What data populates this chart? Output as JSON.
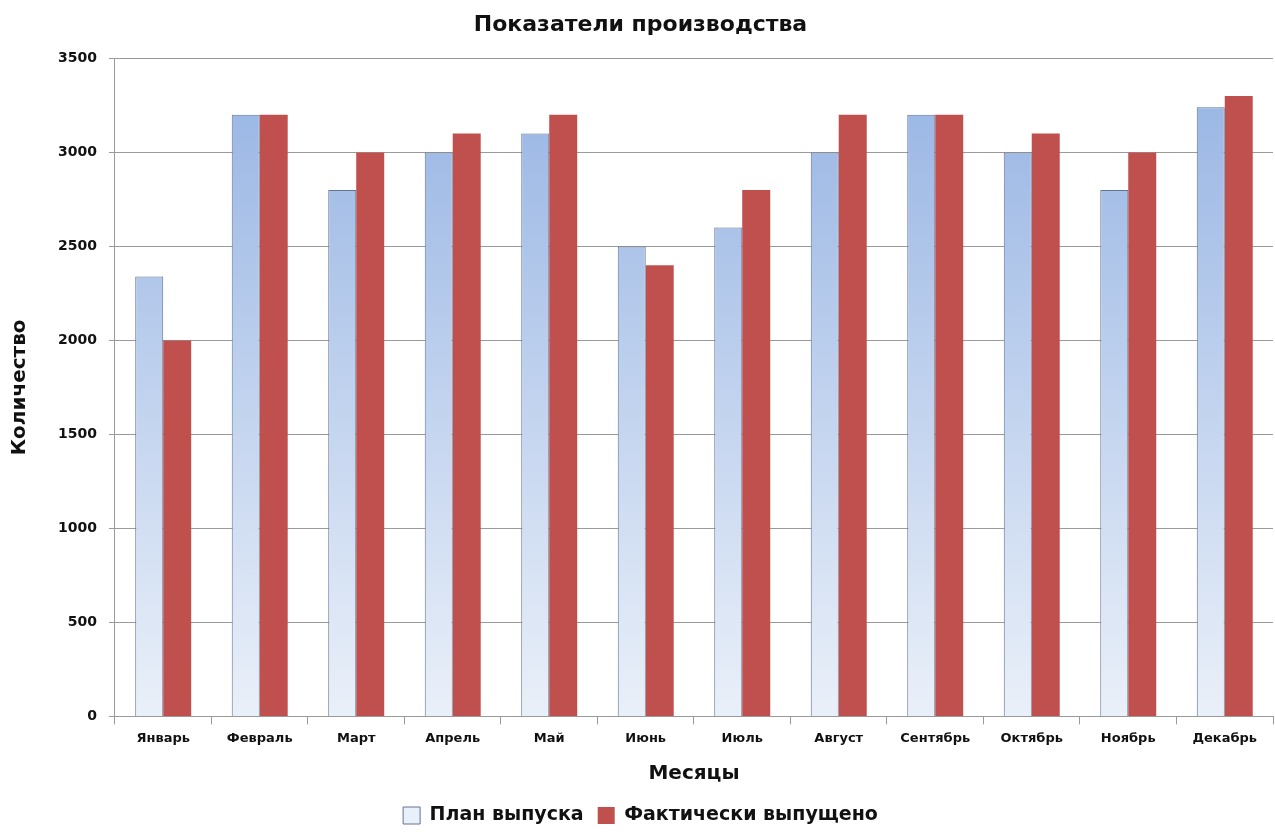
{
  "chart_data": {
    "type": "bar",
    "title": "Показатели производства",
    "xlabel": "Месяцы",
    "ylabel": "Количество",
    "categories": [
      "Январь",
      "Февраль",
      "Март",
      "Апрель",
      "Май",
      "Июнь",
      "Июль",
      "Август",
      "Сентябрь",
      "Октябрь",
      "Ноябрь",
      "Декабрь"
    ],
    "series": [
      {
        "name": "План выпуска",
        "color": "#95b3e3",
        "values": [
          2340,
          3200,
          2800,
          3000,
          3100,
          2500,
          2600,
          3000,
          3200,
          3000,
          2800,
          3240
        ]
      },
      {
        "name": "Фактически выпущено",
        "color": "#c0504d",
        "values": [
          2000,
          3200,
          3000,
          3100,
          3200,
          2400,
          2800,
          3200,
          3200,
          3100,
          3000,
          3300
        ]
      }
    ],
    "ylim": [
      0,
      3500
    ],
    "yticks": [
      0,
      500,
      1000,
      1500,
      2000,
      2500,
      3000,
      3500
    ],
    "grid": "y",
    "legend": "bottom"
  }
}
